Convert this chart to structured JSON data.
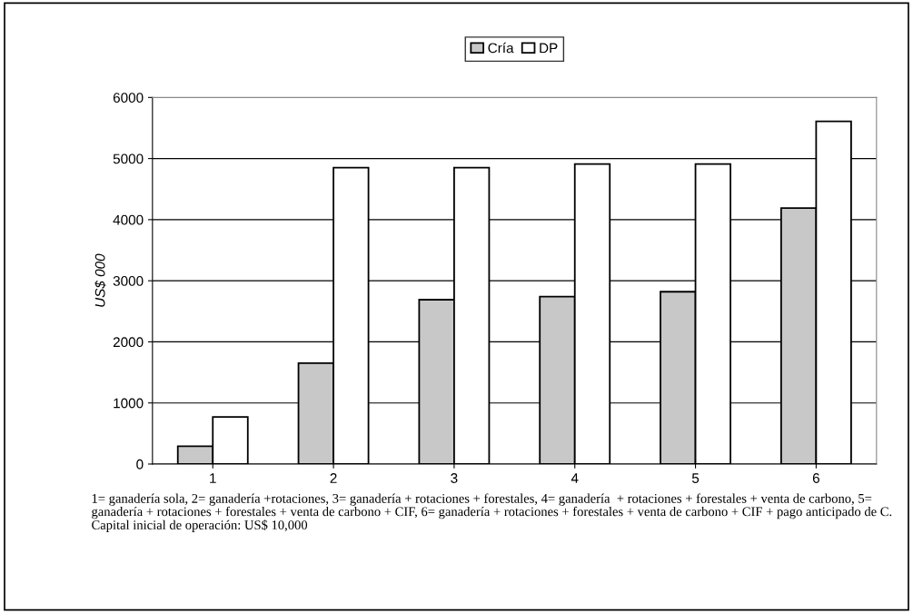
{
  "chart_data": {
    "type": "bar",
    "ylabel": "US$ 000",
    "categories": [
      "1",
      "2",
      "3",
      "4",
      "5",
      "6"
    ],
    "series": [
      {
        "name": "Cría",
        "color": "#c8c8c8",
        "values": [
          290,
          1650,
          2690,
          2740,
          2820,
          4190
        ]
      },
      {
        "name": "DP",
        "color": "#ffffff",
        "values": [
          770,
          4850,
          4850,
          4910,
          4910,
          5610
        ]
      }
    ],
    "ylim": [
      0,
      6000
    ],
    "yticks": [
      0,
      1000,
      2000,
      3000,
      4000,
      5000,
      6000
    ],
    "grid": "y",
    "legend": "top",
    "annotations": [
      "1= ganadería sola, 2= ganadería +rotaciones, 3= ganadería + rotaciones + forestales, 4= ganadería  + rotaciones + forestales + venta de carbono, 5= ganadería + rotaciones + forestales + venta de carbono + CIF, 6= ganadería + rotaciones + forestales + venta de carbono + CIF + pago anticipado de C.  Capital inicial de operación: US$ 10,000"
    ]
  }
}
